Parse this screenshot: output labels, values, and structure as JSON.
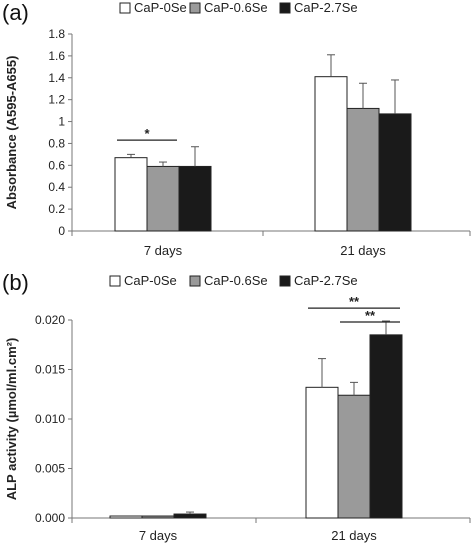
{
  "panels": [
    "(a)",
    "(b)"
  ],
  "legend": [
    {
      "label": "CaP-0Se",
      "color": "#ffffff"
    },
    {
      "label": "CaP-0.6Se",
      "color": "#9a9a9a"
    },
    {
      "label": "CaP-2.7Se",
      "color": "#1a1a1a"
    }
  ],
  "chart_data": [
    {
      "type": "bar",
      "panel": "(a)",
      "categories": [
        "7 days",
        "21 days"
      ],
      "ylabel": "Absorbance (A595-A655)",
      "ylim": [
        0,
        1.8
      ],
      "yticks": [
        0,
        0.2,
        0.4,
        0.6,
        0.8,
        1,
        1.2,
        1.4,
        1.6,
        1.8
      ],
      "ytick_labels": [
        "0",
        "0.2",
        "0.4",
        "0.6",
        "0.8",
        "1",
        "1.2",
        "1.4",
        "1.6",
        "1.8"
      ],
      "grid": false,
      "legend_position": "top",
      "series": [
        {
          "name": "CaP-0Se",
          "values": [
            0.67,
            1.41
          ],
          "errors": [
            0.03,
            0.2
          ]
        },
        {
          "name": "CaP-0.6Se",
          "values": [
            0.59,
            1.12
          ],
          "errors": [
            0.04,
            0.23
          ]
        },
        {
          "name": "CaP-2.7Se",
          "values": [
            0.59,
            1.07
          ],
          "errors": [
            0.18,
            0.31
          ]
        }
      ],
      "annotations": [
        {
          "text": "*",
          "category": "7 days",
          "from": "CaP-0Se",
          "to": "CaP-0.6Se",
          "y": 0.83
        }
      ]
    },
    {
      "type": "bar",
      "panel": "(b)",
      "categories": [
        "7 days",
        "21 days"
      ],
      "ylabel": "ALP activity (µmol/ml.cm²)",
      "ylim": [
        0,
        0.02
      ],
      "yticks": [
        0,
        0.005,
        0.01,
        0.015,
        0.02
      ],
      "ytick_labels": [
        "0.000",
        "0.005",
        "0.010",
        "0.015",
        "0.020"
      ],
      "grid": false,
      "legend_position": "top",
      "series": [
        {
          "name": "CaP-0Se",
          "values": [
            0.0002,
            0.0132
          ],
          "errors": [
            0.0,
            0.0029
          ]
        },
        {
          "name": "CaP-0.6Se",
          "values": [
            0.0002,
            0.0124
          ],
          "errors": [
            0.0,
            0.0013
          ]
        },
        {
          "name": "CaP-2.7Se",
          "values": [
            0.0004,
            0.0185
          ],
          "errors": [
            0.0002,
            0.0014
          ]
        }
      ],
      "annotations": [
        {
          "text": "**",
          "category": "21 days",
          "from": "CaP-0Se",
          "to": "CaP-2.7Se",
          "y": 0.0212
        },
        {
          "text": "**",
          "category": "21 days",
          "from": "CaP-0.6Se",
          "to": "CaP-2.7Se",
          "y": 0.0198
        }
      ]
    }
  ]
}
